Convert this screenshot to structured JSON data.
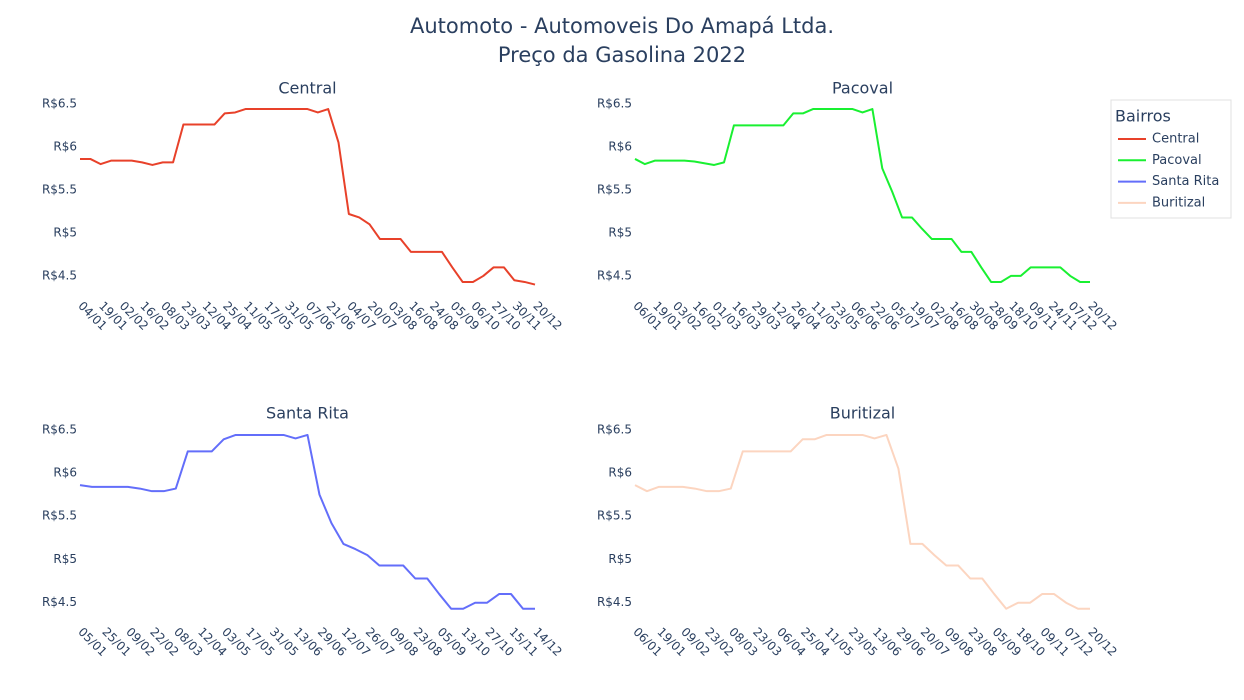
{
  "title": [
    "Automoto - Automoveis Do Amapá Ltda.",
    "Preço da Gasolina 2022"
  ],
  "legend": {
    "title": "Bairros",
    "position": "top-right"
  },
  "chart_data": [
    {
      "type": "line",
      "title": "Central",
      "categories": [
        "04/01",
        null,
        "19/01",
        null,
        "02/02",
        null,
        "16/02",
        null,
        "08/03",
        null,
        "23/03",
        null,
        "12/04",
        null,
        "25/04",
        null,
        "11/05",
        null,
        "17/05",
        null,
        "31/05",
        null,
        "07/06",
        null,
        "21/06",
        null,
        "04/07",
        null,
        "20/07",
        null,
        "03/08",
        null,
        "16/08",
        null,
        "24/08",
        null,
        "05/09",
        null,
        "06/10",
        null,
        "27/10",
        null,
        "30/11",
        null,
        "20/12"
      ],
      "series": [
        {
          "name": "Central",
          "color": "#e8412a",
          "values": [
            5.86,
            5.86,
            5.8,
            5.84,
            5.84,
            5.84,
            5.82,
            5.79,
            5.82,
            5.82,
            6.26,
            6.26,
            6.26,
            6.26,
            6.39,
            6.4,
            6.44,
            6.44,
            6.44,
            6.44,
            6.44,
            6.44,
            6.44,
            6.4,
            6.44,
            6.05,
            5.22,
            5.18,
            5.1,
            4.93,
            4.93,
            4.93,
            4.78,
            4.78,
            4.78,
            4.78,
            4.6,
            4.43,
            4.43,
            4.5,
            4.6,
            4.6,
            4.45,
            4.43,
            4.4
          ]
        }
      ],
      "ylim": [
        4.29,
        6.58
      ],
      "yticks": [
        {
          "value": 4.5,
          "label": "R$4.5"
        },
        {
          "value": 5,
          "label": "R$5"
        },
        {
          "value": 5.5,
          "label": "R$5.5"
        },
        {
          "value": 6,
          "label": "R$6"
        },
        {
          "value": 6.5,
          "label": "R$6.5"
        }
      ]
    },
    {
      "type": "line",
      "title": "Pacoval",
      "categories": [
        "06/01",
        null,
        "19/01",
        null,
        "03/02",
        null,
        "16/02",
        null,
        "01/03",
        null,
        "16/03",
        null,
        "29/03",
        null,
        "12/04",
        null,
        "26/04",
        null,
        "11/05",
        null,
        "23/05",
        null,
        "06/06",
        null,
        "22/06",
        null,
        "05/07",
        null,
        "19/07",
        null,
        "02/08",
        null,
        "16/08",
        null,
        "30/08",
        null,
        "28/09",
        null,
        "18/10",
        null,
        "09/11",
        null,
        "24/11",
        null,
        "07/12",
        null,
        "20/12"
      ],
      "series": [
        {
          "name": "Pacoval",
          "color": "#19f031",
          "values": [
            5.86,
            5.8,
            5.84,
            5.84,
            5.84,
            5.84,
            5.83,
            5.81,
            5.79,
            5.82,
            6.25,
            6.25,
            6.25,
            6.25,
            6.25,
            6.25,
            6.39,
            6.39,
            6.44,
            6.44,
            6.44,
            6.44,
            6.44,
            6.4,
            6.44,
            5.75,
            5.48,
            5.18,
            5.18,
            5.05,
            4.93,
            4.93,
            4.93,
            4.78,
            4.78,
            4.6,
            4.43,
            4.43,
            4.5,
            4.5,
            4.6,
            4.6,
            4.6,
            4.6,
            4.5,
            4.43,
            4.43
          ]
        }
      ],
      "ylim": [
        4.29,
        6.58
      ],
      "yticks": [
        {
          "value": 4.5,
          "label": "R$4.5"
        },
        {
          "value": 5,
          "label": "R$5"
        },
        {
          "value": 5.5,
          "label": "R$5.5"
        },
        {
          "value": 6,
          "label": "R$6"
        },
        {
          "value": 6.5,
          "label": "R$6.5"
        }
      ]
    },
    {
      "type": "line",
      "title": "Santa Rita",
      "categories": [
        "05/01",
        null,
        "25/01",
        null,
        "09/02",
        null,
        "22/02",
        null,
        "08/03",
        null,
        "12/04",
        null,
        "03/05",
        null,
        "17/05",
        null,
        "31/05",
        null,
        "13/06",
        null,
        "29/06",
        null,
        "12/07",
        null,
        "26/07",
        null,
        "09/08",
        null,
        "23/08",
        null,
        "05/09",
        null,
        "13/10",
        null,
        "27/10",
        null,
        "15/11",
        null,
        "14/12"
      ],
      "series": [
        {
          "name": "Santa Rita",
          "color": "#636efa",
          "values": [
            5.86,
            5.84,
            5.84,
            5.84,
            5.84,
            5.82,
            5.79,
            5.79,
            5.82,
            6.25,
            6.25,
            6.25,
            6.39,
            6.44,
            6.44,
            6.44,
            6.44,
            6.44,
            6.4,
            6.44,
            5.75,
            5.42,
            5.18,
            5.12,
            5.05,
            4.93,
            4.93,
            4.93,
            4.78,
            4.78,
            4.6,
            4.43,
            4.43,
            4.5,
            4.5,
            4.6,
            4.6,
            4.43,
            4.43
          ]
        }
      ],
      "ylim": [
        4.3,
        6.59
      ],
      "yticks": [
        {
          "value": 4.5,
          "label": "R$4.5"
        },
        {
          "value": 5,
          "label": "R$5"
        },
        {
          "value": 5.5,
          "label": "R$5.5"
        },
        {
          "value": 6,
          "label": "R$6"
        },
        {
          "value": 6.5,
          "label": "R$6.5"
        }
      ]
    },
    {
      "type": "line",
      "title": "Buritizal",
      "categories": [
        "06/01",
        null,
        "19/01",
        null,
        "09/02",
        null,
        "23/02",
        null,
        "08/03",
        null,
        "23/03",
        null,
        "06/04",
        null,
        "25/04",
        null,
        "11/05",
        null,
        "23/05",
        null,
        "13/06",
        null,
        "29/06",
        null,
        "20/07",
        null,
        "09/08",
        null,
        "23/08",
        null,
        "05/09",
        null,
        "18/10",
        null,
        "09/11",
        null,
        "07/12",
        null,
        "20/12"
      ],
      "series": [
        {
          "name": "Buritizal",
          "color": "#fcd5c0",
          "values": [
            5.86,
            5.79,
            5.84,
            5.84,
            5.84,
            5.82,
            5.79,
            5.79,
            5.82,
            6.25,
            6.25,
            6.25,
            6.25,
            6.25,
            6.39,
            6.39,
            6.44,
            6.44,
            6.44,
            6.44,
            6.4,
            6.44,
            6.05,
            5.18,
            5.18,
            5.05,
            4.93,
            4.93,
            4.78,
            4.78,
            4.6,
            4.43,
            4.5,
            4.5,
            4.6,
            4.6,
            4.5,
            4.43,
            4.43
          ]
        }
      ],
      "ylim": [
        4.3,
        6.59
      ],
      "yticks": [
        {
          "value": 4.5,
          "label": "R$4.5"
        },
        {
          "value": 5,
          "label": "R$5"
        },
        {
          "value": 5.5,
          "label": "R$5.5"
        },
        {
          "value": 6,
          "label": "R$6"
        },
        {
          "value": 6.5,
          "label": "R$6.5"
        }
      ]
    }
  ]
}
